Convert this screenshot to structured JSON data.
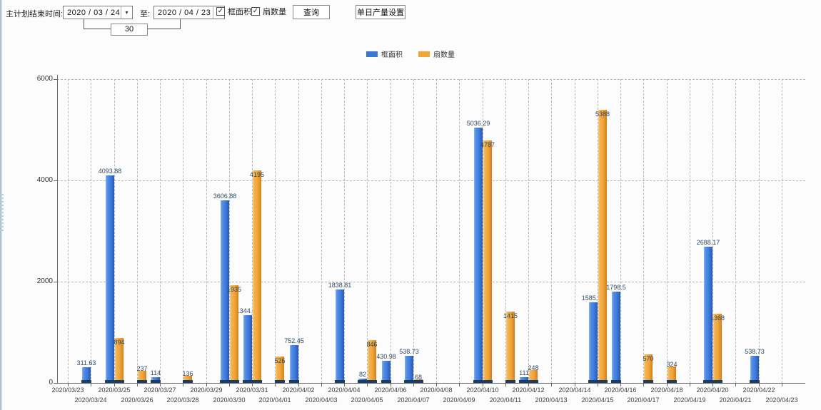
{
  "toolbar": {
    "label": "主计划结束时间:",
    "date_from": "2020 / 03 / 24",
    "to_label": "至:",
    "date_to": "2020 / 04 / 23",
    "days_offset": "30",
    "checkbox_frame_area": "框面积",
    "checkbox_sash_count": "扇数量",
    "query_button": "查询",
    "daily_output_button": "单日产量设置"
  },
  "legend": [
    {
      "label": "框面积",
      "color": "#3a76d2"
    },
    {
      "label": "扇数量",
      "color": "#f0a63c"
    }
  ],
  "chart_data": {
    "type": "bar",
    "title": "",
    "xlabel": "",
    "ylabel": "",
    "ylim": [
      0,
      6000
    ],
    "yticks": [
      0,
      2000,
      4000,
      6000
    ],
    "grid": true,
    "legend_position": "top",
    "categories": [
      "2020/03/23",
      "2020/03/24",
      "2020/03/25",
      "2020/03/26",
      "2020/03/27",
      "2020/03/28",
      "2020/03/29",
      "2020/03/30",
      "2020/03/31",
      "2020/04/01",
      "2020/04/02",
      "2020/04/03",
      "2020/04/04",
      "2020/04/05",
      "2020/04/06",
      "2020/04/07",
      "2020/04/08",
      "2020/04/09",
      "2020/04/10",
      "2020/04/11",
      "2020/04/12",
      "2020/04/13",
      "2020/04/14",
      "2020/04/15",
      "2020/04/16",
      "2020/04/17",
      "2020/04/18",
      "2020/04/19",
      "2020/04/20",
      "2020/04/21",
      "2020/04/22",
      "2020/04/23"
    ],
    "series": [
      {
        "name": "框面积",
        "color": "#4080e0",
        "values": [
          null,
          311.63,
          4093.88,
          null,
          114,
          null,
          null,
          3606.88,
          1344.95,
          null,
          752.45,
          null,
          1838.81,
          82,
          430.98,
          538.73,
          null,
          null,
          5036.29,
          null,
          111,
          null,
          null,
          1585.96,
          1798.5,
          null,
          null,
          null,
          2688.17,
          null,
          538.73,
          null
        ]
      },
      {
        "name": "扇数量",
        "color": "#f2a93c",
        "values": [
          null,
          null,
          894,
          237,
          null,
          136,
          null,
          1935,
          4195,
          526,
          null,
          null,
          null,
          846,
          null,
          68,
          null,
          null,
          4787,
          1415,
          248,
          null,
          null,
          5388,
          null,
          570,
          324,
          null,
          1368,
          null,
          null,
          null
        ]
      }
    ]
  }
}
